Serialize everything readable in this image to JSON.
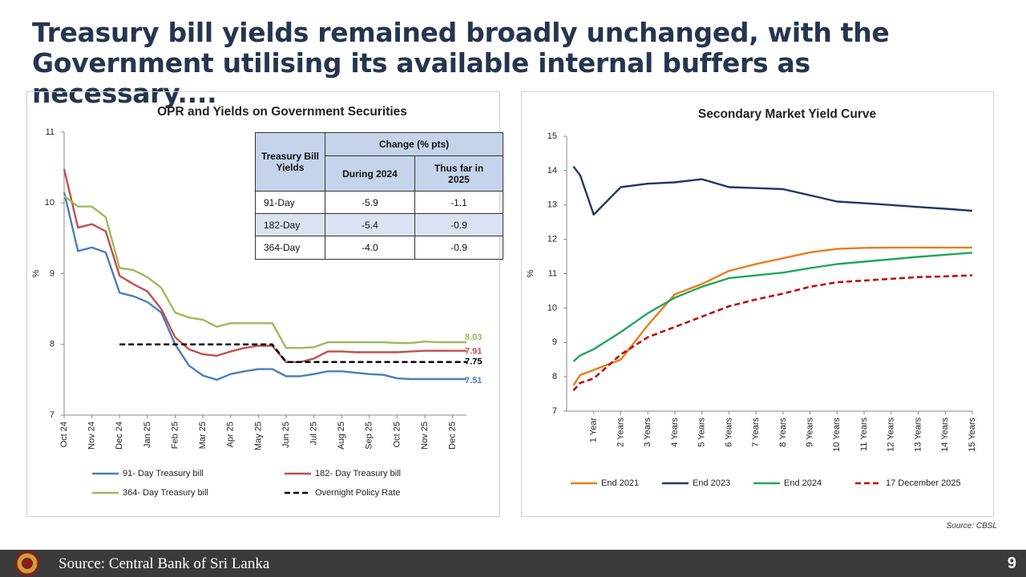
{
  "header": {
    "title": "Treasury bill yields remained broadly unchanged, with the Government utilising its available internal buffers as necessary...."
  },
  "chart_data": [
    {
      "type": "line",
      "title": "OPR and Yields on Government Securities",
      "y_label": "%",
      "categories": [
        "Oct 24",
        null,
        "Nov 24",
        null,
        "Dec 24",
        null,
        "Jan 25",
        null,
        "Feb 25",
        null,
        "Mar 25",
        null,
        "Apr 25",
        null,
        "May 25",
        null,
        "Jun 25",
        null,
        "Jul 25",
        null,
        "Aug 25",
        null,
        "Sep 25",
        null,
        "Oct 25",
        null,
        "Nov 25",
        null,
        "Dec 25",
        null
      ],
      "ylim": [
        7,
        11
      ],
      "yticks": [
        7,
        8,
        9,
        10,
        11
      ],
      "grid": false,
      "end_labels": true,
      "series": [
        {
          "name": "91- Day Treasury bill",
          "color": "#4a7ebb",
          "dash": false,
          "values": [
            10.15,
            9.32,
            9.37,
            9.3,
            8.73,
            8.68,
            8.6,
            8.45,
            8.0,
            7.7,
            7.56,
            7.5,
            7.58,
            7.62,
            7.65,
            7.65,
            7.55,
            7.55,
            7.58,
            7.62,
            7.62,
            7.6,
            7.58,
            7.57,
            7.52,
            7.51,
            7.51,
            7.51,
            7.51,
            7.51
          ]
        },
        {
          "name": "182- Day Treasury bill",
          "color": "#c0504d",
          "dash": false,
          "values": [
            10.48,
            9.65,
            9.7,
            9.6,
            8.97,
            8.85,
            8.75,
            8.5,
            8.1,
            7.93,
            7.86,
            7.84,
            7.9,
            7.95,
            7.98,
            7.98,
            7.75,
            7.75,
            7.8,
            7.9,
            7.9,
            7.89,
            7.89,
            7.89,
            7.89,
            7.9,
            7.91,
            7.91,
            7.91,
            7.91
          ]
        },
        {
          "name": "364- Day Treasury bill",
          "color": "#9bbb59",
          "dash": false,
          "values": [
            10.1,
            9.95,
            9.95,
            9.8,
            9.08,
            9.05,
            8.95,
            8.8,
            8.45,
            8.38,
            8.35,
            8.25,
            8.3,
            8.3,
            8.3,
            8.3,
            7.95,
            7.95,
            7.96,
            8.03,
            8.03,
            8.03,
            8.03,
            8.03,
            8.02,
            8.02,
            8.04,
            8.03,
            8.03,
            8.03
          ]
        },
        {
          "name": "Overnight Policy Rate",
          "color": "#000000",
          "dash": true,
          "values": [
            null,
            null,
            null,
            null,
            8,
            8,
            8,
            8,
            8,
            8,
            8,
            8,
            8,
            8,
            8,
            8,
            7.75,
            7.75,
            7.75,
            7.75,
            7.75,
            7.75,
            7.75,
            7.75,
            7.75,
            7.75,
            7.75,
            7.75,
            7.75,
            7.75
          ]
        }
      ],
      "table": {
        "stub_header": "Treasury Bill Yields",
        "group_header": "Change (% pts)",
        "columns": [
          "During 2024",
          "Thus far in 2025"
        ],
        "rows": [
          [
            "91-Day",
            "-5.9",
            "-1.1"
          ],
          [
            "182-Day",
            "-5.4",
            "-0.9"
          ],
          [
            "364-Day",
            "-4.0",
            "-0.9"
          ]
        ]
      }
    },
    {
      "type": "line",
      "title": "Secondary Market Yield Curve",
      "y_label": "%",
      "x": [
        0.25,
        0.5,
        1,
        2,
        3,
        4,
        5,
        6,
        7,
        8,
        9,
        10,
        11,
        12,
        13,
        14,
        15
      ],
      "xlim": [
        0,
        15
      ],
      "xticks": [
        {
          "value": 1,
          "label": "1 Year"
        },
        {
          "value": 2,
          "label": "2 Years"
        },
        {
          "value": 3,
          "label": "3 Years"
        },
        {
          "value": 4,
          "label": "4 Years"
        },
        {
          "value": 5,
          "label": "5 Years"
        },
        {
          "value": 6,
          "label": "6 Years"
        },
        {
          "value": 7,
          "label": "7 Years"
        },
        {
          "value": 8,
          "label": "8 Years"
        },
        {
          "value": 9,
          "label": "9 Years"
        },
        {
          "value": 10,
          "label": "10 Years"
        },
        {
          "value": 11,
          "label": "11 Years"
        },
        {
          "value": 12,
          "label": "12 Years"
        },
        {
          "value": 13,
          "label": "13 Years"
        },
        {
          "value": 14,
          "label": "14 Years"
        },
        {
          "value": 15,
          "label": "15 Years"
        }
      ],
      "ylim": [
        7,
        15
      ],
      "yticks": [
        7,
        8,
        9,
        10,
        11,
        12,
        13,
        14,
        15
      ],
      "grid": false,
      "end_labels": false,
      "series": [
        {
          "name": "End 2021",
          "color": "#e87d1e",
          "dash": false,
          "values": [
            7.75,
            8.05,
            8.2,
            8.5,
            9.5,
            10.4,
            10.7,
            11.08,
            11.28,
            11.45,
            11.62,
            11.72,
            11.75,
            11.76,
            11.76,
            11.76,
            11.76
          ]
        },
        {
          "name": "End 2023",
          "color": "#1f3864",
          "dash": false,
          "values": [
            14.12,
            13.86,
            12.72,
            13.52,
            13.62,
            13.66,
            13.75,
            13.52,
            13.49,
            13.46,
            13.28,
            13.1,
            13.05,
            13.0,
            12.94,
            12.89,
            12.83
          ]
        },
        {
          "name": "End 2024",
          "color": "#21a65a",
          "dash": false,
          "values": [
            8.45,
            8.62,
            8.8,
            9.3,
            9.85,
            10.3,
            10.62,
            10.87,
            10.95,
            11.03,
            11.16,
            11.28,
            11.35,
            11.42,
            11.49,
            11.55,
            11.61
          ]
        },
        {
          "name": "17 December 2025",
          "color": "#c00000",
          "dash": true,
          "values": [
            7.6,
            7.82,
            7.95,
            8.65,
            9.15,
            9.45,
            9.75,
            10.05,
            10.25,
            10.42,
            10.62,
            10.75,
            10.8,
            10.85,
            10.9,
            10.92,
            10.95
          ]
        }
      ]
    }
  ],
  "source_note": "Source: CBSL",
  "footer": {
    "source": "Source: Central Bank of Sri Lanka",
    "page_number": 9
  }
}
